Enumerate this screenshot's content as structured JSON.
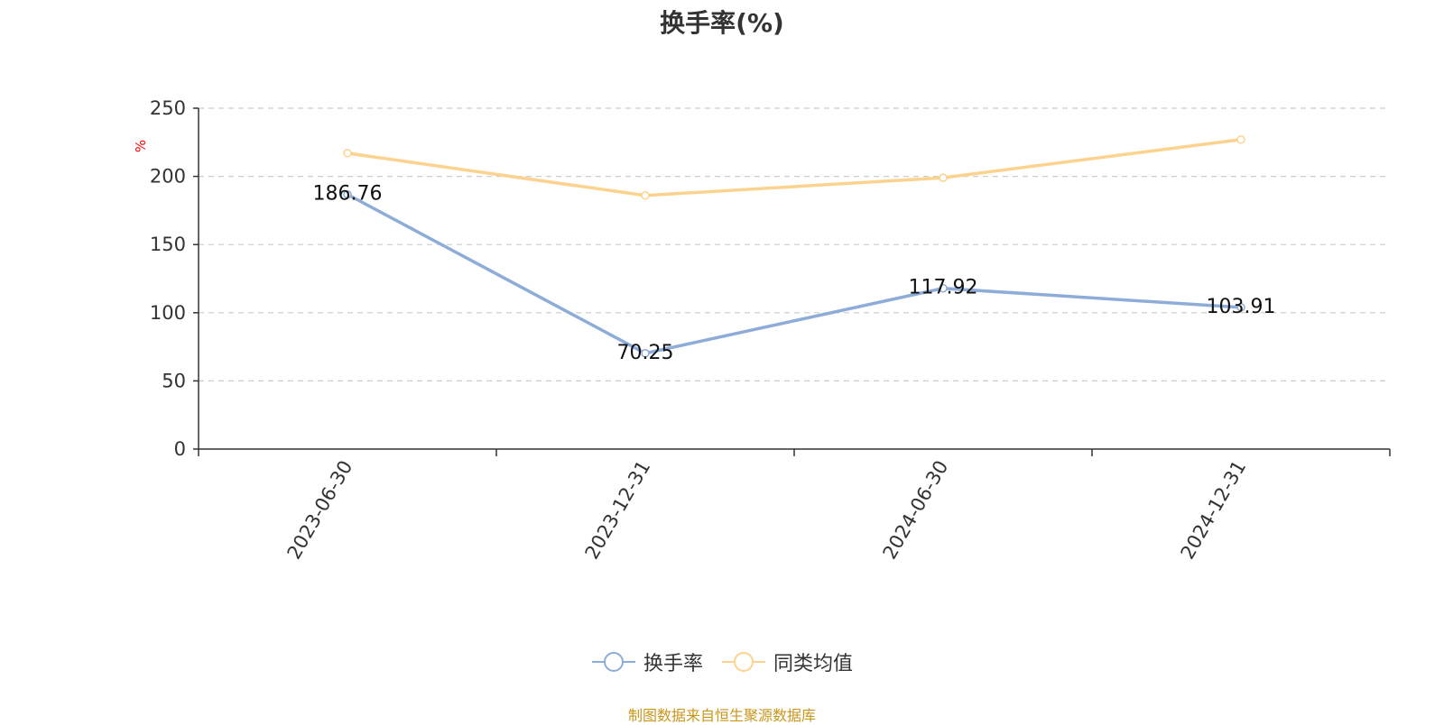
{
  "chart_data": {
    "type": "line",
    "title": "换手率(%)",
    "ylabel": "%",
    "categories": [
      "2023-06-30",
      "2023-12-31",
      "2024-06-30",
      "2024-12-31"
    ],
    "ylim": [
      0,
      250
    ],
    "yticks": [
      0,
      50,
      100,
      150,
      200,
      250
    ],
    "grid": true,
    "legend_position": "bottom",
    "series": [
      {
        "name": "换手率",
        "values": [
          186.76,
          70.25,
          117.92,
          103.91
        ],
        "color": "#8eacd8",
        "data_labels": [
          "186.76",
          "70.25",
          "117.92",
          "103.91"
        ]
      },
      {
        "name": "同类均值",
        "values": [
          217,
          186,
          199,
          227
        ],
        "color": "#fcd38e"
      }
    ]
  },
  "footer": {
    "source": "制图数据来自恒生聚源数据库",
    "color": "#c9961a"
  },
  "colors": {
    "axis": "#333333",
    "grid": "#cccccc",
    "ylabel": "#ff0000"
  }
}
